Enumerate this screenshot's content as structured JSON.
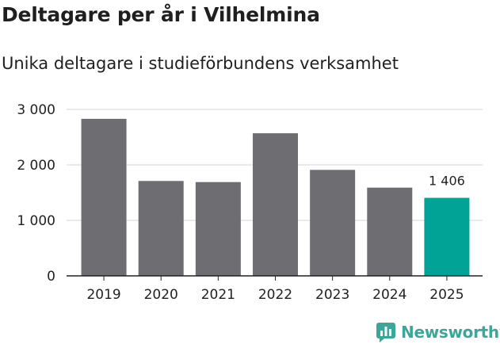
{
  "title": "Deltagare per år i Vilhelmina",
  "subtitle": "Unika deltagare i studieförbundens verksamhet",
  "brand": "Newsworthy",
  "colors": {
    "bar": "#6e6d72",
    "highlight": "#00a396",
    "grid": "#d4d4d4",
    "axis": "#222222",
    "brand": "#3aa79a"
  },
  "chart_data": {
    "type": "bar",
    "title": "Deltagare per år i Vilhelmina",
    "subtitle": "Unika deltagare i studieförbundens verksamhet",
    "categories": [
      "2019",
      "2020",
      "2021",
      "2022",
      "2023",
      "2024",
      "2025"
    ],
    "values": [
      2830,
      1710,
      1690,
      2570,
      1910,
      1590,
      1406
    ],
    "highlight_index": 6,
    "data_labels": [
      {
        "index": 6,
        "text": "1 406"
      }
    ],
    "yticks": [
      0,
      1000,
      2000,
      3000
    ],
    "ytick_labels": [
      "0",
      "1 000",
      "2 000",
      "3 000"
    ],
    "ylim": [
      0,
      3000
    ],
    "xlabel": "",
    "ylabel": "",
    "grid": true,
    "legend": "none"
  }
}
